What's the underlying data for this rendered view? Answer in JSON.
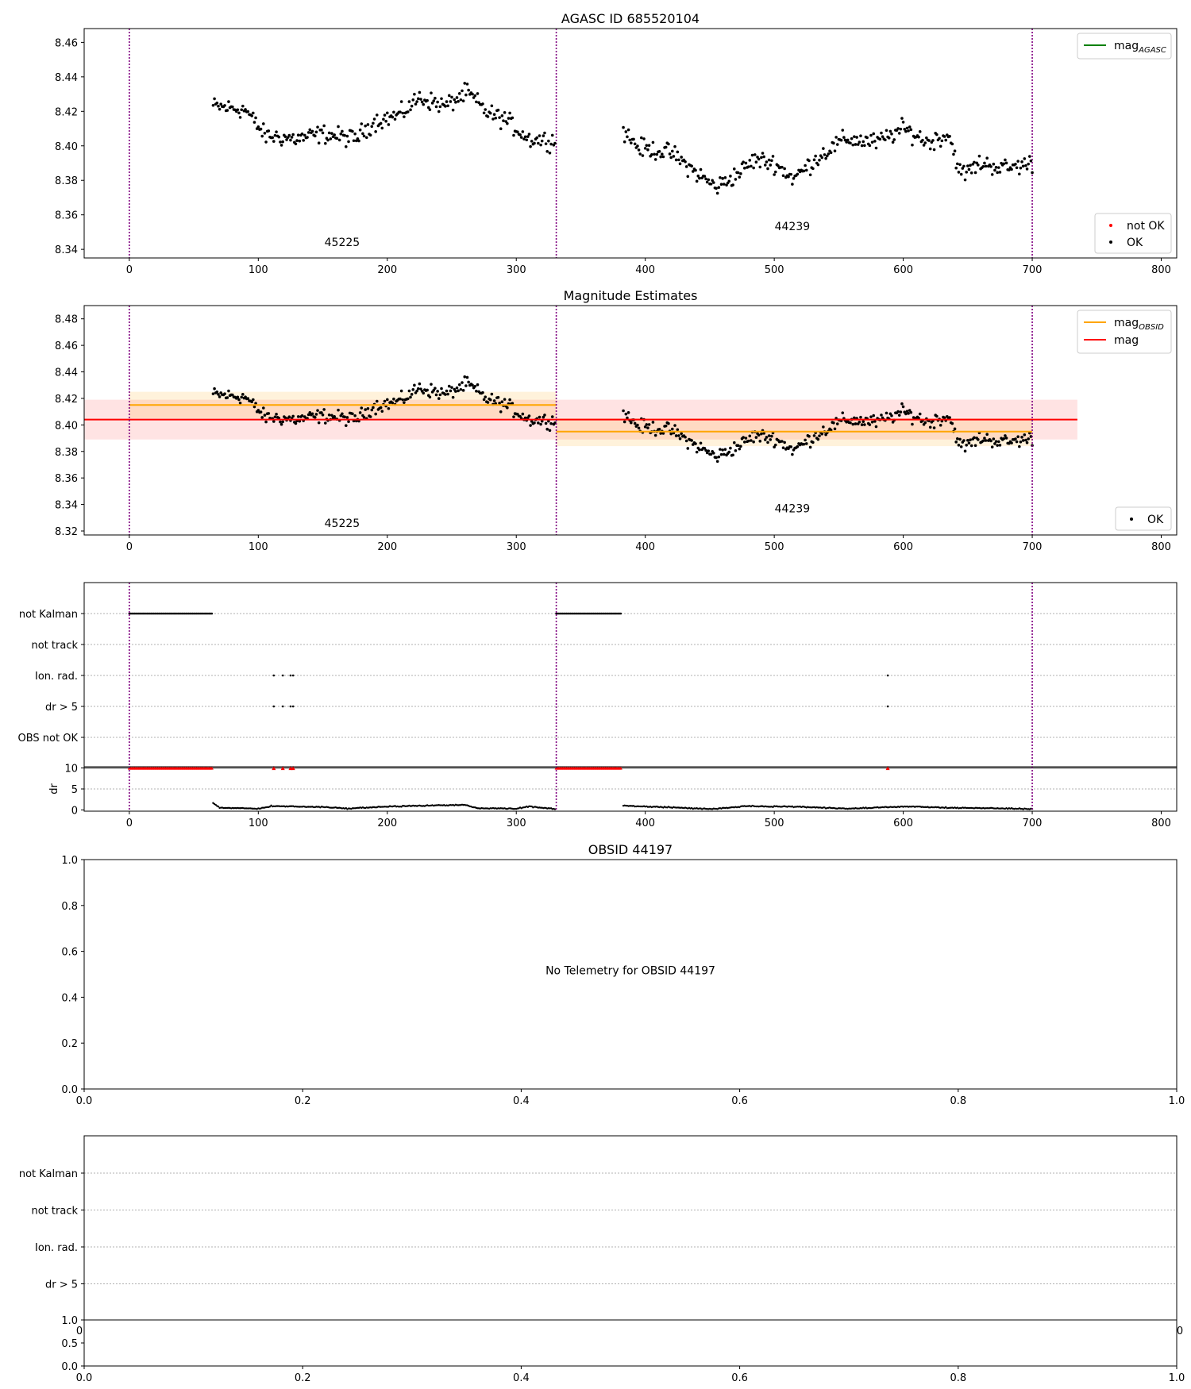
{
  "chart_data": [
    {
      "type": "scatter",
      "title": "AGASC ID 685520104",
      "xlim": [
        -35,
        812
      ],
      "ylim": [
        8.335,
        8.468
      ],
      "xticks": [
        0,
        100,
        200,
        300,
        400,
        500,
        600,
        700,
        800
      ],
      "yticks": [
        8.34,
        8.36,
        8.38,
        8.4,
        8.42,
        8.44,
        8.46
      ],
      "vlines": [
        0,
        331,
        700
      ],
      "legend_upper": [
        {
          "label": "mag",
          "sub": "AGASC",
          "color": "#008000",
          "kind": "line"
        }
      ],
      "legend_lower": [
        {
          "label": "not OK",
          "color": "#ff0000",
          "kind": "dot"
        },
        {
          "label": "OK",
          "color": "#000000",
          "kind": "dot"
        }
      ],
      "annotations": [
        {
          "text": "45225",
          "x": 165,
          "y": 8.342
        },
        {
          "text": "44239",
          "x": 514,
          "y": 8.351
        }
      ],
      "series": [
        {
          "name": "OK",
          "segments": [
            {
              "x_range": [
                65,
                330
              ],
              "anchors": [
                [
                  65,
                  8.423
                ],
                [
                  90,
                  8.421
                ],
                [
                  105,
                  8.406
                ],
                [
                  130,
                  8.404
                ],
                [
                  150,
                  8.407
                ],
                [
                  175,
                  8.404
                ],
                [
                  190,
                  8.414
                ],
                [
                  210,
                  8.418
                ],
                [
                  225,
                  8.428
                ],
                [
                  245,
                  8.423
                ],
                [
                  262,
                  8.431
                ],
                [
                  278,
                  8.419
                ],
                [
                  292,
                  8.415
                ],
                [
                  310,
                  8.404
                ],
                [
                  330,
                  8.403
                ]
              ],
              "noise": 0.0045
            },
            {
              "x_range": [
                383,
                700
              ],
              "anchors": [
                [
                  383,
                  8.409
                ],
                [
                  395,
                  8.399
                ],
                [
                  420,
                  8.396
                ],
                [
                  440,
                  8.384
                ],
                [
                  455,
                  8.376
                ],
                [
                  470,
                  8.383
                ],
                [
                  485,
                  8.392
                ],
                [
                  500,
                  8.39
                ],
                [
                  515,
                  8.381
                ],
                [
                  535,
                  8.394
                ],
                [
                  555,
                  8.404
                ],
                [
                  580,
                  8.402
                ],
                [
                  600,
                  8.41
                ],
                [
                  620,
                  8.402
                ],
                [
                  635,
                  8.407
                ],
                [
                  645,
                  8.383
                ],
                [
                  660,
                  8.39
                ],
                [
                  680,
                  8.387
                ],
                [
                  700,
                  8.39
                ]
              ],
              "noise": 0.0045
            }
          ]
        }
      ]
    },
    {
      "type": "scatter",
      "title": "Magnitude Estimates",
      "xlim": [
        -35,
        812
      ],
      "ylim": [
        8.317,
        8.49
      ],
      "xticks": [
        0,
        100,
        200,
        300,
        400,
        500,
        600,
        700,
        800
      ],
      "yticks": [
        8.32,
        8.34,
        8.36,
        8.38,
        8.4,
        8.42,
        8.44,
        8.46,
        8.48
      ],
      "vlines": [
        0,
        331,
        700
      ],
      "legend_upper": [
        {
          "label": "mag",
          "sub": "OBSID",
          "color": "#ffa500",
          "kind": "line"
        },
        {
          "label": "mag",
          "sub": "",
          "color": "#ff0000",
          "kind": "line"
        }
      ],
      "legend_lower": [
        {
          "label": "OK",
          "color": "#000000",
          "kind": "dot"
        }
      ],
      "annotations": [
        {
          "text": "45225",
          "x": 165,
          "y": 8.323
        },
        {
          "text": "44239",
          "x": 514,
          "y": 8.334
        }
      ],
      "bands": [
        {
          "x": [
            -35,
            735
          ],
          "y": 8.404,
          "lo": 8.389,
          "hi": 8.419,
          "color": "#ff0000",
          "fill": "rgba(255,0,0,0.11)"
        },
        {
          "x": [
            0,
            331
          ],
          "y": 8.415,
          "lo": 8.405,
          "hi": 8.425,
          "color": "#ffa500",
          "fill": "rgba(255,165,0,0.14)"
        },
        {
          "x": [
            331,
            700
          ],
          "y": 8.395,
          "lo": 8.384,
          "hi": 8.405,
          "color": "#ffa500",
          "fill": "rgba(255,165,0,0.14)"
        }
      ],
      "series": [
        {
          "name": "OK",
          "segments": [
            {
              "x_range": [
                65,
                330
              ],
              "anchors": [
                [
                  65,
                  8.423
                ],
                [
                  90,
                  8.421
                ],
                [
                  105,
                  8.406
                ],
                [
                  130,
                  8.404
                ],
                [
                  150,
                  8.407
                ],
                [
                  175,
                  8.404
                ],
                [
                  190,
                  8.414
                ],
                [
                  210,
                  8.418
                ],
                [
                  225,
                  8.428
                ],
                [
                  245,
                  8.423
                ],
                [
                  262,
                  8.431
                ],
                [
                  278,
                  8.419
                ],
                [
                  292,
                  8.415
                ],
                [
                  310,
                  8.404
                ],
                [
                  330,
                  8.403
                ]
              ],
              "noise": 0.0045
            },
            {
              "x_range": [
                383,
                700
              ],
              "anchors": [
                [
                  383,
                  8.409
                ],
                [
                  395,
                  8.399
                ],
                [
                  420,
                  8.396
                ],
                [
                  440,
                  8.384
                ],
                [
                  455,
                  8.376
                ],
                [
                  470,
                  8.383
                ],
                [
                  485,
                  8.392
                ],
                [
                  500,
                  8.39
                ],
                [
                  515,
                  8.381
                ],
                [
                  535,
                  8.394
                ],
                [
                  555,
                  8.404
                ],
                [
                  580,
                  8.402
                ],
                [
                  600,
                  8.41
                ],
                [
                  620,
                  8.402
                ],
                [
                  635,
                  8.407
                ],
                [
                  645,
                  8.383
                ],
                [
                  660,
                  8.39
                ],
                [
                  680,
                  8.387
                ],
                [
                  700,
                  8.39
                ]
              ],
              "noise": 0.0045
            }
          ]
        }
      ]
    },
    {
      "type": "scatter",
      "title": "",
      "xlim": [
        -35,
        812
      ],
      "categories": [
        "not Kalman",
        "not track",
        "Ion. rad.",
        "dr > 5",
        "OBS not OK"
      ],
      "vlines": [
        0,
        331,
        700
      ],
      "flags": [
        {
          "category": "not Kalman",
          "ranges": [
            [
              0,
              64
            ],
            [
              331,
              381
            ]
          ],
          "points": []
        },
        {
          "category": "not track",
          "ranges": [],
          "points": []
        },
        {
          "category": "Ion. rad.",
          "ranges": [],
          "points": [
            112,
            119,
            125,
            127,
            588
          ]
        },
        {
          "category": "dr > 5",
          "ranges": [],
          "points": [
            112,
            119,
            125,
            127,
            588
          ]
        },
        {
          "category": "OBS not OK",
          "ranges": [],
          "points": []
        }
      ]
    },
    {
      "type": "line",
      "title": "",
      "ylabel": "dr",
      "xlim": [
        -35,
        812
      ],
      "ylim": [
        -0.3,
        10.3
      ],
      "xticks": [
        0,
        100,
        200,
        300,
        400,
        500,
        600,
        700,
        800
      ],
      "yticks": [
        0,
        5,
        10
      ],
      "vlines": [
        0,
        331,
        700
      ],
      "capped_ranges": [
        [
          0,
          64
        ],
        [
          331,
          381
        ]
      ],
      "capped_points": [
        112,
        119,
        125,
        127,
        588
      ],
      "capped_value": 10,
      "segments": [
        {
          "x_range": [
            65,
            330
          ],
          "anchors": [
            [
              65,
              1.6
            ],
            [
              70,
              0.5
            ],
            [
              100,
              0.3
            ],
            [
              110,
              0.9
            ],
            [
              150,
              0.7
            ],
            [
              170,
              0.3
            ],
            [
              200,
              0.8
            ],
            [
              230,
              1.0
            ],
            [
              260,
              1.2
            ],
            [
              270,
              0.4
            ],
            [
              300,
              0.3
            ],
            [
              310,
              0.8
            ],
            [
              330,
              0.2
            ]
          ]
        },
        {
          "x_range": [
            383,
            700
          ],
          "anchors": [
            [
              383,
              1.0
            ],
            [
              420,
              0.6
            ],
            [
              450,
              0.2
            ],
            [
              480,
              0.9
            ],
            [
              520,
              0.7
            ],
            [
              560,
              0.3
            ],
            [
              600,
              0.8
            ],
            [
              640,
              0.5
            ],
            [
              670,
              0.4
            ],
            [
              700,
              0.2
            ]
          ]
        }
      ]
    },
    {
      "type": "scatter",
      "title": "OBSID 44197",
      "xlim": [
        0,
        1
      ],
      "ylim": [
        0,
        1
      ],
      "xticks": [
        0,
        0.2,
        0.4,
        0.6,
        0.8,
        1.0
      ],
      "xtick_labels": [
        "0.0",
        "0.2",
        "0.4",
        "0.6",
        "0.8",
        "1.0"
      ],
      "yticks": [
        0,
        0.2,
        0.4,
        0.6,
        0.8,
        1.0
      ],
      "ytick_labels": [
        "0.0",
        "0.2",
        "0.4",
        "0.6",
        "0.8",
        "1.0"
      ],
      "annotations": [
        {
          "text": "No Telemetry for OBSID 44197",
          "x": 0.5,
          "y": 0.5
        }
      ]
    },
    {
      "type": "scatter",
      "title": "",
      "categories": [
        "not Kalman",
        "not track",
        "Ion. rad.",
        "dr > 5"
      ],
      "hidden_x_tick_labels": [
        "0",
        "0"
      ]
    },
    {
      "type": "line",
      "title": "",
      "xlim": [
        0,
        1
      ],
      "ylim": [
        0,
        1
      ],
      "xticks": [
        0,
        0.2,
        0.4,
        0.6,
        0.8,
        1.0
      ],
      "xtick_labels": [
        "0.0",
        "0.2",
        "0.4",
        "0.6",
        "0.8",
        "1.0"
      ],
      "yticks": [
        0,
        0.5,
        1.0
      ],
      "ytick_labels": [
        "0.0",
        "0.5",
        "1.0"
      ]
    }
  ]
}
